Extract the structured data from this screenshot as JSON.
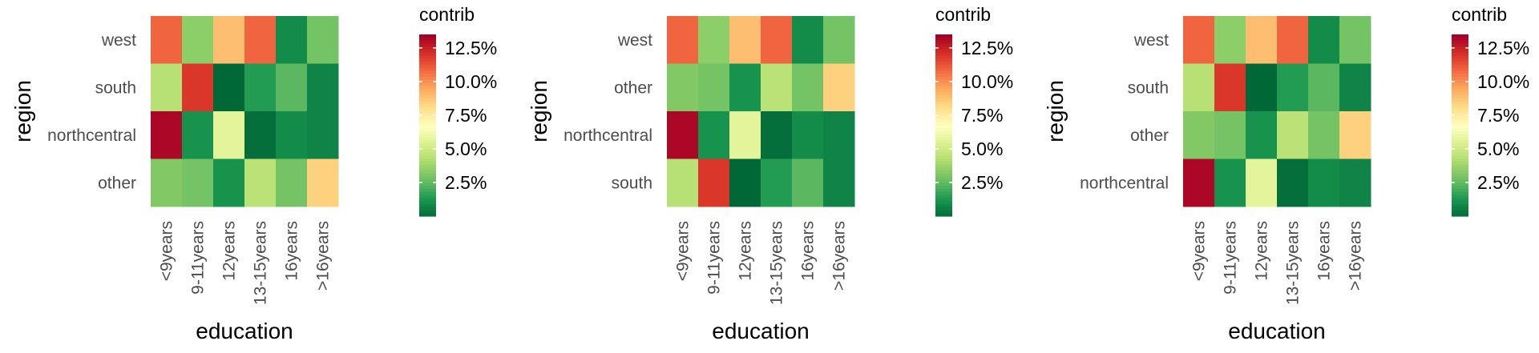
{
  "chart_data": [
    {
      "type": "heatmap",
      "xlabel": "education",
      "ylabel": "region",
      "x_categories": [
        "<9years",
        "9-11years",
        "12years",
        "13-15years",
        "16years",
        ">16years"
      ],
      "y_categories": [
        "west",
        "south",
        "northcentral",
        "other"
      ],
      "values": [
        [
          11.0,
          3.5,
          9.0,
          11.0,
          1.0,
          3.0
        ],
        [
          4.5,
          12.0,
          0.0,
          1.5,
          2.5,
          0.8
        ],
        [
          13.3,
          1.2,
          5.8,
          0.2,
          1.0,
          0.8
        ],
        [
          3.3,
          3.0,
          1.2,
          4.6,
          3.0,
          8.5
        ]
      ],
      "legend_title": "contrib",
      "legend_ticks": [
        "2.5%",
        "5.0%",
        "7.5%",
        "10.0%",
        "12.5%"
      ],
      "legend_tick_values": [
        2.5,
        5.0,
        7.5,
        10.0,
        12.5
      ],
      "color_range": [
        0,
        13.5
      ],
      "colors": [
        "#006837",
        "#1a9850",
        "#66bd63",
        "#a6d96a",
        "#d9ef8b",
        "#ffffbf",
        "#fee08b",
        "#fdae61",
        "#f46d43",
        "#d73027",
        "#a50026"
      ],
      "grid": false
    },
    {
      "type": "heatmap",
      "xlabel": "education",
      "ylabel": "region",
      "x_categories": [
        "<9years",
        "9-11years",
        "12years",
        "13-15years",
        "16years",
        ">16years"
      ],
      "y_categories": [
        "west",
        "other",
        "northcentral",
        "south"
      ],
      "values": [
        [
          11.0,
          3.5,
          9.0,
          11.0,
          1.0,
          3.0
        ],
        [
          3.3,
          3.0,
          1.2,
          4.6,
          3.0,
          8.5
        ],
        [
          13.3,
          1.2,
          5.8,
          0.2,
          1.0,
          0.8
        ],
        [
          4.5,
          12.0,
          0.0,
          1.5,
          2.5,
          0.8
        ]
      ],
      "legend_title": "contrib",
      "legend_ticks": [
        "2.5%",
        "5.0%",
        "7.5%",
        "10.0%",
        "12.5%"
      ],
      "legend_tick_values": [
        2.5,
        5.0,
        7.5,
        10.0,
        12.5
      ],
      "color_range": [
        0,
        13.5
      ],
      "colors": [
        "#006837",
        "#1a9850",
        "#66bd63",
        "#a6d96a",
        "#d9ef8b",
        "#ffffbf",
        "#fee08b",
        "#fdae61",
        "#f46d43",
        "#d73027",
        "#a50026"
      ],
      "grid": false
    },
    {
      "type": "heatmap",
      "xlabel": "education",
      "ylabel": "region",
      "x_categories": [
        "<9years",
        "9-11years",
        "12years",
        "13-15years",
        "16years",
        ">16years"
      ],
      "y_categories": [
        "west",
        "south",
        "other",
        "northcentral"
      ],
      "values": [
        [
          11.0,
          3.5,
          9.0,
          11.0,
          1.0,
          3.0
        ],
        [
          4.5,
          12.0,
          0.0,
          1.5,
          2.5,
          0.8
        ],
        [
          3.3,
          3.0,
          1.2,
          4.6,
          3.0,
          8.5
        ],
        [
          13.3,
          1.2,
          5.8,
          0.2,
          1.0,
          0.8
        ]
      ],
      "legend_title": "contrib",
      "legend_ticks": [
        "2.5%",
        "5.0%",
        "7.5%",
        "10.0%",
        "12.5%"
      ],
      "legend_tick_values": [
        2.5,
        5.0,
        7.5,
        10.0,
        12.5
      ],
      "color_range": [
        0,
        13.5
      ],
      "colors": [
        "#006837",
        "#1a9850",
        "#66bd63",
        "#a6d96a",
        "#d9ef8b",
        "#ffffbf",
        "#fee08b",
        "#fdae61",
        "#f46d43",
        "#d73027",
        "#a50026"
      ],
      "grid": false
    }
  ]
}
